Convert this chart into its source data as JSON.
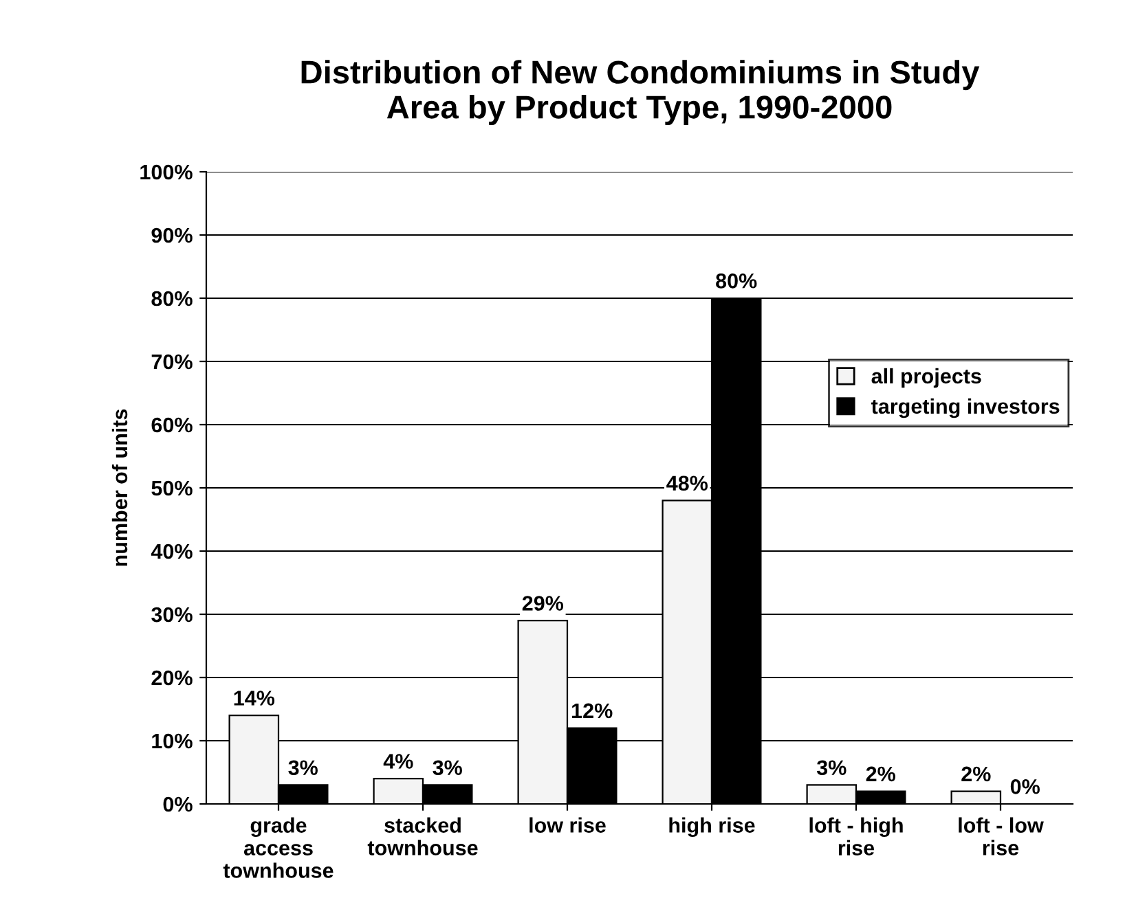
{
  "chart_data": {
    "type": "bar",
    "title": "Distribution of New Condominiums in Study\nArea by Product Type, 1990-2000",
    "ylabel": "number of units",
    "categories": [
      "grade\naccess\ntownhouse",
      "stacked\ntownhouse",
      "low rise",
      "high rise",
      "loft - high\nrise",
      "loft - low\nrise"
    ],
    "series": [
      {
        "name": "all projects",
        "color": "#f4f4f4",
        "values": [
          14,
          4,
          29,
          48,
          3,
          2
        ],
        "value_labels": [
          "14%",
          "4%",
          "29%",
          "48%",
          "3%",
          "2%"
        ]
      },
      {
        "name": "targeting investors",
        "color": "#000000",
        "values": [
          3,
          3,
          12,
          80,
          2,
          0
        ],
        "value_labels": [
          "3%",
          "3%",
          "12%",
          "80%",
          "2%",
          "0%"
        ]
      }
    ],
    "ylim": [
      0,
      100
    ],
    "yticks": [
      {
        "value": 0,
        "label": "0%"
      },
      {
        "value": 10,
        "label": "10%"
      },
      {
        "value": 20,
        "label": "20%"
      },
      {
        "value": 30,
        "label": "30%"
      },
      {
        "value": 40,
        "label": "40%"
      },
      {
        "value": 50,
        "label": "50%"
      },
      {
        "value": 60,
        "label": "60%"
      },
      {
        "value": 70,
        "label": "70%"
      },
      {
        "value": 80,
        "label": "80%"
      },
      {
        "value": 90,
        "label": "90%"
      },
      {
        "value": 100,
        "label": "100%"
      }
    ],
    "grid": "y",
    "legend": "right"
  }
}
